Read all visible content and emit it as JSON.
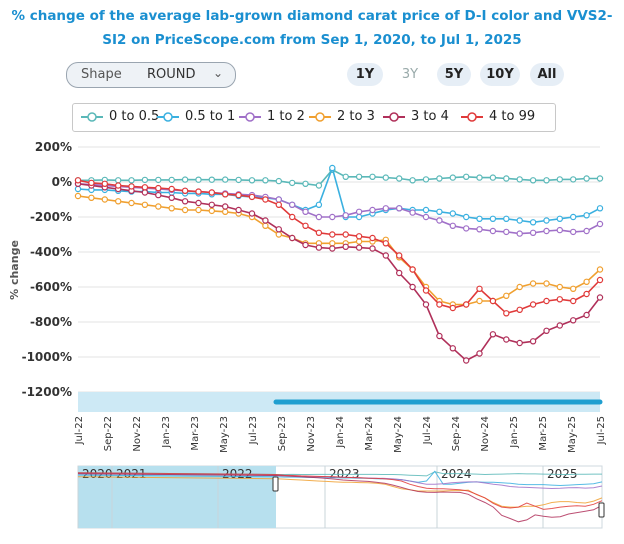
{
  "title": "% change of the average lab-grown diamond carat price of D-I color and VVS2-SI2 on PriceScope.com from Sep 1, 2020, to Jul 1, 2025",
  "controls": {
    "shape_label": "Shape",
    "shape_value": "ROUND",
    "ranges": [
      "1Y",
      "3Y",
      "5Y",
      "10Y",
      "All"
    ]
  },
  "chart_data": {
    "type": "line",
    "title": "% change of the average lab-grown diamond carat price of D-I color and VVS2-SI2 on PriceScope.com from Sep 1, 2020, to Jul 1, 2025",
    "xlabel": "",
    "ylabel": "% change",
    "ylim": [
      -1200,
      200
    ],
    "yticks": [
      "200%",
      "0%",
      "-200%",
      "-400%",
      "-600%",
      "-800%",
      "-1000%",
      "-1200%"
    ],
    "ytick_values": [
      200,
      0,
      -200,
      -400,
      -600,
      -800,
      -1000,
      -1200
    ],
    "x_start": "Jul-22",
    "x_end": "Jul-25",
    "xtick_labels": [
      "Jul-22",
      "Sep-22",
      "Nov-22",
      "Jan-23",
      "Mar-23",
      "May-23",
      "Jul-23",
      "Sep-23",
      "Nov-23",
      "Jan-24",
      "Mar-24",
      "May-24",
      "Jul-24",
      "Sep-24",
      "Nov-24",
      "Jan-25",
      "Mar-25",
      "May-25",
      "Jul-25"
    ],
    "grid": true,
    "legend_position": "top",
    "series": [
      {
        "name": "0 to 0.5",
        "color": "#5ab8b8",
        "values": [
          10,
          10,
          12,
          10,
          10,
          12,
          12,
          12,
          14,
          13,
          13,
          14,
          12,
          10,
          10,
          5,
          -5,
          -10,
          -20,
          70,
          30,
          30,
          30,
          25,
          20,
          10,
          15,
          20,
          25,
          30,
          25,
          25,
          20,
          15,
          10,
          10,
          15,
          15,
          20,
          20
        ]
      },
      {
        "name": "0.5 to 1",
        "color": "#3ab0e0",
        "values": [
          -40,
          -45,
          -45,
          -50,
          -55,
          -55,
          -60,
          -60,
          -65,
          -65,
          -70,
          -70,
          -80,
          -85,
          -90,
          -100,
          -130,
          -160,
          -130,
          80,
          -200,
          -200,
          -180,
          -160,
          -150,
          -160,
          -160,
          -170,
          -180,
          -200,
          -210,
          -210,
          -210,
          -220,
          -230,
          -220,
          -210,
          -200,
          -190,
          -150
        ]
      },
      {
        "name": "1 to 2",
        "color": "#a070c8",
        "values": [
          -10,
          -15,
          -20,
          -25,
          -30,
          -35,
          -40,
          -45,
          -50,
          -55,
          -60,
          -65,
          -70,
          -75,
          -85,
          -100,
          -130,
          -170,
          -200,
          -200,
          -190,
          -170,
          -160,
          -150,
          -150,
          -175,
          -200,
          -220,
          -250,
          -265,
          -270,
          -280,
          -285,
          -295,
          -290,
          -280,
          -275,
          -285,
          -280,
          -240
        ]
      },
      {
        "name": "2 to 3",
        "color": "#f0a030",
        "values": [
          -80,
          -90,
          -100,
          -110,
          -120,
          -130,
          -140,
          -150,
          -160,
          -160,
          -165,
          -170,
          -180,
          -200,
          -250,
          -300,
          -320,
          -350,
          -350,
          -350,
          -350,
          -340,
          -340,
          -330,
          -430,
          -500,
          -600,
          -680,
          -700,
          -700,
          -680,
          -680,
          -650,
          -600,
          -580,
          -580,
          -600,
          -610,
          -570,
          -500
        ]
      },
      {
        "name": "3 to 4",
        "color": "#b0305a",
        "values": [
          -10,
          -20,
          -30,
          -40,
          -50,
          -60,
          -75,
          -90,
          -110,
          -120,
          -130,
          -140,
          -160,
          -180,
          -220,
          -270,
          -320,
          -360,
          -375,
          -380,
          -370,
          -375,
          -380,
          -420,
          -520,
          -600,
          -700,
          -880,
          -950,
          -1020,
          -980,
          -870,
          -900,
          -920,
          -910,
          -850,
          -820,
          -790,
          -760,
          -660
        ]
      },
      {
        "name": "4 to 99",
        "color": "#e03a3a",
        "values": [
          10,
          -5,
          -10,
          -20,
          -25,
          -30,
          -35,
          -40,
          -50,
          -55,
          -60,
          -70,
          -75,
          -85,
          -100,
          -130,
          -200,
          -250,
          -290,
          -300,
          -300,
          -310,
          -320,
          -350,
          -420,
          -500,
          -620,
          -700,
          -720,
          -700,
          -610,
          -680,
          -750,
          -730,
          -700,
          -680,
          -670,
          -680,
          -640,
          -560
        ]
      }
    ]
  },
  "navigator": {
    "years": [
      "2020",
      "2021",
      "2022",
      "2023",
      "2024",
      "2025"
    ]
  }
}
